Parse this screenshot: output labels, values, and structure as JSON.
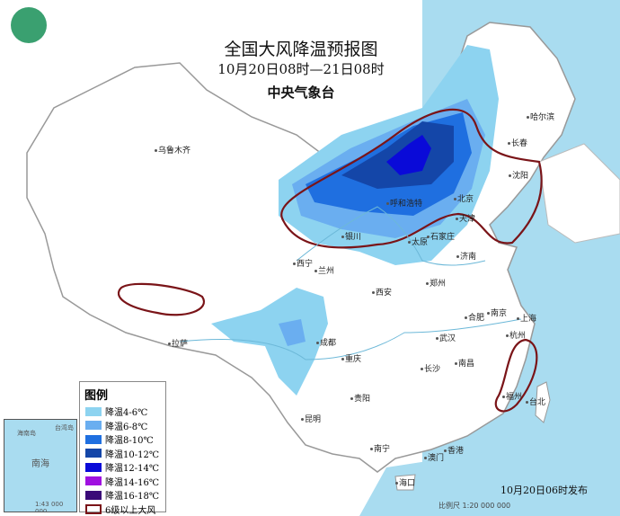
{
  "header": {
    "title": "全国大风降温预报图",
    "period": "10月20日08时—21日08时",
    "issuer": "中央气象台"
  },
  "legend": {
    "title": "图例",
    "items": [
      {
        "label": "降温4-6℃",
        "color": "#8dd3f0"
      },
      {
        "label": "降温6-8℃",
        "color": "#6aaef0"
      },
      {
        "label": "降温8-10℃",
        "color": "#1f6fe0"
      },
      {
        "label": "降温10-12℃",
        "color": "#1446a8"
      },
      {
        "label": "降温12-14℃",
        "color": "#0a0ad8"
      },
      {
        "label": "降温14-16℃",
        "color": "#a010e0"
      },
      {
        "label": "降温16-18℃",
        "color": "#3a0a78"
      },
      {
        "label": "6级以上大风",
        "color": "#7a1418"
      }
    ]
  },
  "cities": [
    "乌鲁木齐",
    "哈尔滨",
    "长春",
    "沈阳",
    "北京",
    "天津",
    "呼和浩特",
    "银川",
    "太原",
    "石家庄",
    "济南",
    "西宁",
    "兰州",
    "西安",
    "郑州",
    "拉萨",
    "成都",
    "重庆",
    "武汉",
    "合肥",
    "南京",
    "上海",
    "杭州",
    "南昌",
    "长沙",
    "贵阳",
    "昆明",
    "南宁",
    "福州",
    "台北",
    "香港",
    "澳门",
    "海口"
  ],
  "inset": {
    "labels": [
      "南海",
      "海南岛",
      "台湾岛",
      "1:43 000 000"
    ]
  },
  "footer": {
    "issued": "10月20日06时发布",
    "scale": "比例尺 1:20 000 000"
  },
  "colors": {
    "sea": "#a9dcf0",
    "wind_outline": "#7a1418"
  }
}
